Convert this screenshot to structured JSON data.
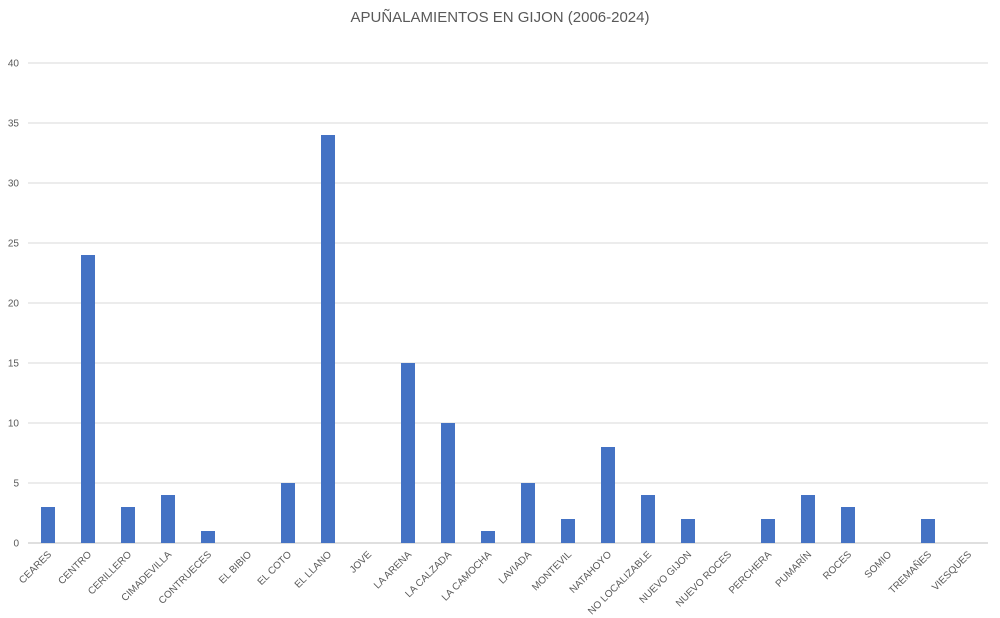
{
  "chart_data": {
    "type": "bar",
    "title": "APUÑALAMIENTOS EN GIJON (2006-2024)",
    "xlabel": "",
    "ylabel": "",
    "ylim": [
      0,
      40
    ],
    "yticks": [
      0,
      5,
      10,
      15,
      20,
      25,
      30,
      35,
      40
    ],
    "grid": true,
    "legend": "none",
    "bar_color": "#4472C4",
    "categories": [
      "CEARES",
      "CENTRO",
      "CERILLERO",
      "CIMADEVILLA",
      "CONTRUECES",
      "EL BIBIO",
      "EL COTO",
      "EL LLANO",
      "JOVE",
      "LA ARENA",
      "LA CALZADA",
      "LA CAMOCHA",
      "LAVIADA",
      "MONTEVIL",
      "NATAHOYO",
      "NO LOCALIZABLE",
      "NUEVO GIJON",
      "NUEVO ROCES",
      "PERCHERA",
      "PUMARÍN",
      "ROCES",
      "SOMIO",
      "TREMAÑES",
      "VIESQUES"
    ],
    "values": [
      3,
      24,
      3,
      4,
      1,
      0,
      5,
      34,
      0,
      15,
      10,
      1,
      5,
      2,
      8,
      4,
      2,
      0,
      2,
      4,
      3,
      0,
      2,
      0
    ]
  }
}
